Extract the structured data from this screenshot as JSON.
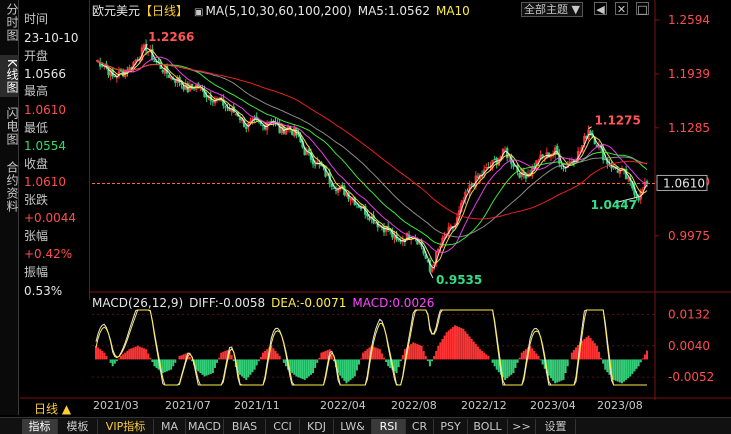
{
  "vtabs": [
    "分时图",
    "K线图",
    "闪电图",
    "合约资料"
  ],
  "info": {
    "time_label": "时间",
    "time_value": "23-10-10",
    "open_label": "开盘",
    "open_value": "1.0566",
    "high_label": "最高",
    "high_value": "1.0610",
    "low_label": "最低",
    "low_value": "1.0554",
    "close_label": "收盘",
    "close_value": "1.0610",
    "change_label": "张跌",
    "change_value": "+0.0044",
    "pct_label": "张幅",
    "pct_value": "+0.42%",
    "amp_label": "振幅",
    "amp_value": "0.53%"
  },
  "header": {
    "symbol": "欧元美元",
    "period": "【日线】",
    "ma_params": "MA(5,10,30,60,100,200)",
    "ma5": "MA5:1.0562",
    "ma10": "MA10",
    "theme_button": "全部主题",
    "theme_arrow": "▼",
    "icons": [
      "◀",
      "✕",
      "□"
    ]
  },
  "macd_header": {
    "name": "MACD(26,12,9)",
    "diff": "DIFF:-0.0058",
    "dea": "DEA:-0.0071",
    "macd": "MACD:0.0026"
  },
  "price_axis": [
    "1.2594",
    "1.1939",
    "1.1285",
    "1.0630",
    "0.9975"
  ],
  "current_price": "1.0610",
  "macd_axis": [
    "0.0132",
    "0.0040",
    "-0.0052"
  ],
  "annotations": {
    "high1": "1.2266",
    "low": "0.9535",
    "high2": "1.1275",
    "last_low": "1.0447"
  },
  "x_axis": [
    "2021/03",
    "2021/07",
    "2021/11",
    "2022/04",
    "2022/08",
    "2022/12",
    "2023/04",
    "2023/08"
  ],
  "period_button": "日线",
  "period_arrow": "▲",
  "indicator_tabs": [
    "指标",
    "模板",
    "VIP指标",
    "MA",
    "MACD",
    "BIAS",
    "CCI",
    "KDJ",
    "LW&",
    "RSI",
    "CR",
    "PSY",
    "BOLL",
    ">>",
    "设置"
  ],
  "colors": {
    "up": "#ff3333",
    "down": "#33cc77",
    "ma5": "#ffffff",
    "ma10": "#ffee44",
    "ma30": "#ff44ff",
    "ma60": "#44ff44",
    "ma100": "#999999",
    "ma200": "#ff2222"
  },
  "chart_data": {
    "type": "candlestick",
    "ylim": [
      0.9535,
      1.2594
    ],
    "closes": [
      1.21,
      1.205,
      1.19,
      1.195,
      1.2,
      1.215,
      1.2266,
      1.21,
      1.2,
      1.19,
      1.185,
      1.175,
      1.18,
      1.17,
      1.165,
      1.16,
      1.15,
      1.145,
      1.13,
      1.135,
      1.13,
      1.14,
      1.125,
      1.13,
      1.12,
      1.1,
      1.09,
      1.08,
      1.065,
      1.055,
      1.05,
      1.04,
      1.03,
      1.02,
      1.01,
      1.005,
      0.99,
      0.995,
      1.0,
      0.985,
      0.9535,
      0.98,
      1.0,
      1.01,
      1.04,
      1.06,
      1.07,
      1.08,
      1.09,
      1.1,
      1.085,
      1.07,
      1.075,
      1.09,
      1.095,
      1.1,
      1.08,
      1.09,
      1.1,
      1.1275,
      1.11,
      1.09,
      1.08,
      1.075,
      1.06,
      1.0447,
      1.061
    ],
    "macd_hist": [
      0.004,
      0.002,
      -0.002,
      0.001,
      0.003,
      0.004,
      0.003,
      -0.002,
      -0.004,
      -0.003,
      0.001,
      0.002,
      -0.003,
      -0.005,
      -0.004,
      0.002,
      0.003,
      -0.004,
      -0.006,
      -0.003,
      0.002,
      0.004,
      0.001,
      -0.003,
      -0.005,
      -0.006,
      -0.004,
      0.002,
      0.003,
      -0.004,
      -0.007,
      -0.005,
      0.002,
      0.004,
      0.003,
      -0.002,
      -0.004,
      0.003,
      0.005,
      0.004,
      -0.002,
      0.004,
      0.008,
      0.01,
      0.009,
      0.006,
      0.003,
      0.001,
      -0.003,
      -0.006,
      -0.004,
      0.002,
      0.004,
      0.001,
      -0.004,
      -0.007,
      -0.006,
      0.002,
      0.005,
      0.007,
      0.004,
      -0.003,
      -0.006,
      -0.007,
      -0.005,
      -0.002,
      0.0026
    ]
  }
}
